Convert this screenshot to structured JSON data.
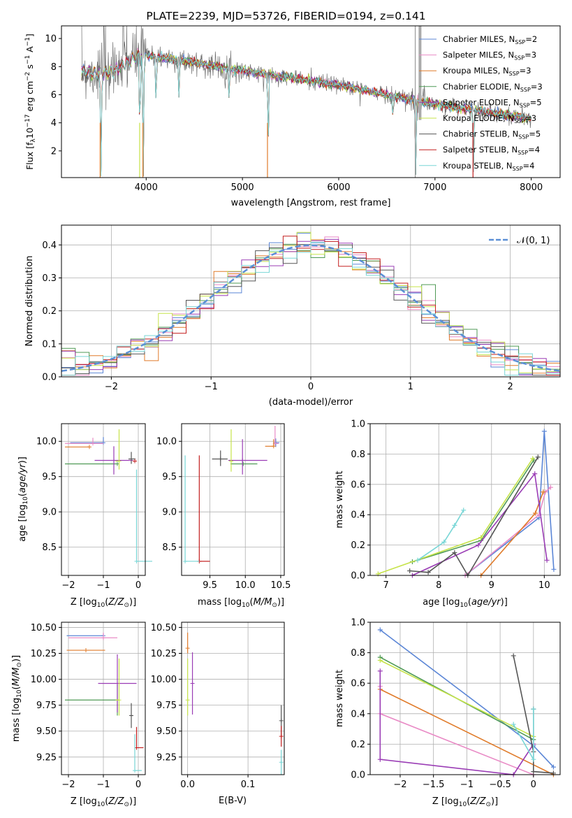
{
  "figure_title": "PLATE=2239, MJD=53726, FIBERID=0194, z=0.141",
  "colors": {
    "Chabrier MILES": "#5b86d6",
    "Salpeter MILES": "#e98bc6",
    "Kroupa MILES": "#e07b2a",
    "Chabrier ELODIE": "#4f9a55",
    "Salpeter ELODIE": "#9a3cb5",
    "Kroupa ELODIE": "#c6e34a",
    "Chabrier STELIB": "#555555",
    "Salpeter STELIB": "#c41f1f",
    "Kroupa STELIB": "#78d6d6"
  },
  "chart_data": [
    {
      "id": "spectrum",
      "type": "line",
      "title": "PLATE=2239, MJD=53726, FIBERID=0194, z=0.141",
      "xlabel": "wavelength [Angstrom, rest frame]",
      "ylabel": "Flux [f_λ 10^-17 erg cm^-2 s^-1 A^-1]",
      "xlim": [
        3120,
        8300
      ],
      "ylim": [
        0.1,
        10.9
      ],
      "xticks": [
        4000,
        5000,
        6000,
        7000,
        8000
      ],
      "yticks": [
        2,
        4,
        6,
        8,
        10
      ],
      "legend_position": "top-right",
      "legend": [
        {
          "base": "Chabrier MILES, N",
          "sub": "SSP",
          "tail": "=2"
        },
        {
          "base": "Salpeter MILES, N",
          "sub": "SSP",
          "tail": "=3"
        },
        {
          "base": "Kroupa MILES, N",
          "sub": "SSP",
          "tail": "=3"
        },
        {
          "base": "Chabrier ELODIE, N",
          "sub": "SSP",
          "tail": "=3"
        },
        {
          "base": "Salpeter ELODIE, N",
          "sub": "SSP",
          "tail": "=5"
        },
        {
          "base": "Kroupa ELODIE, N",
          "sub": "SSP",
          "tail": "=3"
        },
        {
          "base": "Chabrier STELIB, N",
          "sub": "SSP",
          "tail": "=5"
        },
        {
          "base": "Salpeter STELIB, N",
          "sub": "SSP",
          "tail": "=4"
        },
        {
          "base": "Kroupa STELIB, N",
          "sub": "SSP",
          "tail": "=4"
        }
      ],
      "continuum": [
        [
          3330,
          7.7
        ],
        [
          3500,
          7.5
        ],
        [
          3650,
          7.6
        ],
        [
          3800,
          8.3
        ],
        [
          3950,
          8.9
        ],
        [
          4100,
          8.7
        ],
        [
          4500,
          8.3
        ],
        [
          5000,
          7.7
        ],
        [
          5500,
          7.2
        ],
        [
          6000,
          6.7
        ],
        [
          6500,
          6.0
        ],
        [
          7000,
          5.3
        ],
        [
          7500,
          4.8
        ],
        [
          7800,
          4.5
        ],
        [
          8000,
          4.3
        ]
      ],
      "absorption_lines": [
        [
          3530,
          0.2
        ],
        [
          3934,
          2.6
        ],
        [
          3970,
          0.2
        ],
        [
          4102,
          5.2
        ],
        [
          4340,
          5.8
        ],
        [
          4861,
          5.6
        ],
        [
          5268,
          2.2
        ],
        [
          6563,
          4.2
        ],
        [
          6800,
          0.3
        ],
        [
          7400,
          0.5
        ]
      ]
    },
    {
      "id": "residuals",
      "type": "line",
      "xlabel": "(data-model)/error",
      "ylabel": "Normed distribution",
      "xlim": [
        -2.5,
        2.5
      ],
      "ylim": [
        0,
        0.46
      ],
      "xticks": [
        -2,
        -1,
        0,
        1,
        2
      ],
      "yticks": [
        0.0,
        0.1,
        0.2,
        0.3,
        0.4
      ],
      "legend_position": "top-right",
      "legend": [
        "𝒩(0, 1)"
      ],
      "gaussian": {
        "mean": 0,
        "sigma": 1,
        "n_bins": 36,
        "bin_width": 0.1389
      }
    },
    {
      "id": "age-vs-Z",
      "type": "scatter",
      "xlabel": "Z [log10(Z/Z⊙)]",
      "ylabel": "age  [log10(age/yr)]",
      "xlim": [
        -2.2,
        0.2
      ],
      "ylim": [
        8.1,
        10.25
      ],
      "xticks": [
        -2,
        -1,
        0
      ],
      "yticks": [
        8.5,
        9.0,
        9.5,
        10.0
      ],
      "points": [
        {
          "m": "Chabrier MILES",
          "x": -1.0,
          "xerr": [
            0.95,
            0
          ],
          "y": 9.98,
          "yerr": [
            0,
            0.08
          ]
        },
        {
          "m": "Salpeter MILES",
          "x": -1.3,
          "xerr": [
            0.8,
            0.3
          ],
          "y": 9.97,
          "yerr": [
            0,
            0.08
          ]
        },
        {
          "m": "Kroupa MILES",
          "x": -1.4,
          "xerr": [
            0.7,
            0
          ],
          "y": 9.92,
          "yerr": [
            0,
            0
          ]
        },
        {
          "m": "Chabrier ELODIE",
          "x": -0.6,
          "xerr": [
            1.5,
            0
          ],
          "y": 9.68,
          "yerr": [
            0,
            0
          ]
        },
        {
          "m": "Salpeter ELODIE",
          "x": -0.7,
          "xerr": [
            0.55,
            0.55
          ],
          "y": 9.73,
          "yerr": [
            0.2,
            0.2
          ]
        },
        {
          "m": "Kroupa ELODIE",
          "x": -0.55,
          "xerr": [
            0.1,
            0
          ],
          "y": 9.72,
          "yerr": [
            0.12,
            0.45
          ]
        },
        {
          "m": "Chabrier STELIB",
          "x": -0.2,
          "xerr": [
            0.08,
            0.12
          ],
          "y": 9.75,
          "yerr": [
            0.07,
            0.1
          ]
        },
        {
          "m": "Salpeter STELIB",
          "x": -0.1,
          "xerr": [
            0.05,
            0.05
          ],
          "y": 9.72,
          "yerr": [
            0,
            0
          ]
        },
        {
          "m": "Kroupa STELIB",
          "x": -0.05,
          "xerr": [
            0,
            0.45
          ],
          "y": 8.3,
          "yerr": [
            0,
            1.3
          ]
        }
      ]
    },
    {
      "id": "age-vs-mass",
      "type": "scatter",
      "xlabel": "mass [log10(M/M⊙)]",
      "xlim": [
        9.1,
        10.55
      ],
      "ylim": [
        8.1,
        10.25
      ],
      "xticks": [
        9.5,
        10.0,
        10.5
      ],
      "yticks": [
        8.5,
        9.0,
        9.5,
        10.0
      ],
      "points": [
        {
          "m": "Chabrier MILES",
          "x": 10.43,
          "xerr": [
            0,
            0.05
          ],
          "y": 9.98,
          "yerr": [
            0.06,
            0.06
          ]
        },
        {
          "m": "Salpeter MILES",
          "x": 10.42,
          "xerr": [
            0,
            0.05
          ],
          "y": 9.97,
          "yerr": [
            0,
            0.25
          ]
        },
        {
          "m": "Kroupa MILES",
          "x": 10.4,
          "xerr": [
            0.12,
            0
          ],
          "y": 9.93,
          "yerr": [
            0,
            0.1
          ]
        },
        {
          "m": "Chabrier ELODIE",
          "x": 9.97,
          "xerr": [
            0.18,
            0.2
          ],
          "y": 9.68,
          "yerr": [
            0,
            0
          ]
        },
        {
          "m": "Salpeter ELODIE",
          "x": 9.96,
          "xerr": [
            0.2,
            0.35
          ],
          "y": 9.73,
          "yerr": [
            0.2,
            0.3
          ]
        },
        {
          "m": "Kroupa ELODIE",
          "x": 9.8,
          "xerr": [
            0,
            0
          ],
          "y": 9.72,
          "yerr": [
            0.15,
            0.45
          ]
        },
        {
          "m": "Chabrier STELIB",
          "x": 9.65,
          "xerr": [
            0.12,
            0.1
          ],
          "y": 9.75,
          "yerr": [
            0.1,
            0.12
          ]
        },
        {
          "m": "Salpeter STELIB",
          "x": 9.35,
          "xerr": [
            0,
            0.15
          ],
          "y": 8.3,
          "yerr": [
            0,
            1.5
          ]
        },
        {
          "m": "Kroupa STELIB",
          "x": 9.15,
          "xerr": [
            0,
            0.2
          ],
          "y": 8.3,
          "yerr": [
            0,
            1.5
          ]
        }
      ]
    },
    {
      "id": "weight-vs-age",
      "type": "line",
      "xlabel": "age  [log10(age/yr)]",
      "ylabel": "mass weight",
      "xlim": [
        6.7,
        10.3
      ],
      "ylim": [
        0,
        1.0
      ],
      "xticks": [
        7,
        8,
        9,
        10
      ],
      "yticks": [
        0.0,
        0.2,
        0.4,
        0.6,
        0.8,
        1.0
      ],
      "series": [
        {
          "m": "Chabrier MILES",
          "x": [
            8.5,
            9.9,
            10.0,
            10.18
          ],
          "y": [
            0.0,
            0.38,
            0.95,
            0.04
          ]
        },
        {
          "m": "Salpeter MILES",
          "x": [
            8.5,
            9.9,
            10.02,
            10.12
          ],
          "y": [
            0.0,
            0.4,
            0.55,
            0.58
          ]
        },
        {
          "m": "Kroupa MILES",
          "x": [
            8.8,
            9.83,
            9.98
          ],
          "y": [
            0.0,
            0.41,
            0.55
          ]
        },
        {
          "m": "Chabrier ELODIE",
          "x": [
            7.5,
            8.8,
            9.8
          ],
          "y": [
            0.09,
            0.23,
            0.76
          ]
        },
        {
          "m": "Salpeter ELODIE",
          "x": [
            7.5,
            8.75,
            9.82,
            10.05
          ],
          "y": [
            0.0,
            0.2,
            0.67,
            0.1
          ]
        },
        {
          "m": "Kroupa ELODIE",
          "x": [
            6.85,
            8.8,
            9.78
          ],
          "y": [
            0.01,
            0.25,
            0.77
          ]
        },
        {
          "m": "Chabrier STELIB",
          "x": [
            7.45,
            7.8,
            8.3,
            8.55,
            9.88
          ],
          "y": [
            0.03,
            0.02,
            0.15,
            0.0,
            0.78
          ]
        },
        {
          "m": "Salpeter STELIB",
          "x": [],
          "y": []
        },
        {
          "m": "Kroupa STELIB",
          "x": [
            7.6,
            8.1,
            8.3,
            8.47
          ],
          "y": [
            0.1,
            0.22,
            0.33,
            0.43
          ]
        }
      ]
    },
    {
      "id": "mass-vs-Z",
      "type": "scatter",
      "xlabel": "Z [log10(Z/Z⊙)]",
      "ylabel": "mass [log10(M/M⊙)]",
      "xlim": [
        -2.2,
        0.2
      ],
      "ylim": [
        9.08,
        10.55
      ],
      "xticks": [
        -2,
        -1,
        0
      ],
      "yticks": [
        9.25,
        9.5,
        9.75,
        10.0,
        10.25,
        10.5
      ],
      "points": [
        {
          "m": "Chabrier MILES",
          "x": -1.0,
          "xerr": [
            1.05,
            0
          ],
          "y": 10.42,
          "yerr": [
            0,
            0.02
          ]
        },
        {
          "m": "Salpeter MILES",
          "x": -1.0,
          "xerr": [
            1.0,
            0.4
          ],
          "y": 10.4,
          "yerr": [
            0.02,
            0.05
          ]
        },
        {
          "m": "Kroupa MILES",
          "x": -1.5,
          "xerr": [
            0.55,
            0.55
          ],
          "y": 10.28,
          "yerr": [
            0,
            0
          ]
        },
        {
          "m": "Chabrier ELODIE",
          "x": -0.6,
          "xerr": [
            1.5,
            0
          ],
          "y": 9.8,
          "yerr": [
            0.15,
            0.15
          ]
        },
        {
          "m": "Salpeter ELODIE",
          "x": -0.6,
          "xerr": [
            0.55,
            0.55
          ],
          "y": 9.96,
          "yerr": [
            0.28,
            0.28
          ]
        },
        {
          "m": "Kroupa ELODIE",
          "x": -0.55,
          "xerr": [
            0.1,
            0
          ],
          "y": 9.8,
          "yerr": [
            0.15,
            0.4
          ]
        },
        {
          "m": "Chabrier STELIB",
          "x": -0.2,
          "xerr": [
            0.05,
            0.05
          ],
          "y": 9.65,
          "yerr": [
            0.12,
            0.12
          ]
        },
        {
          "m": "Salpeter STELIB",
          "x": -0.05,
          "xerr": [
            0,
            0.2
          ],
          "y": 9.34,
          "yerr": [
            0,
            0.2
          ]
        },
        {
          "m": "Kroupa STELIB",
          "x": -0.1,
          "xerr": [
            0,
            0.2
          ],
          "y": 9.12,
          "yerr": [
            0,
            0.35
          ]
        }
      ]
    },
    {
      "id": "mass-vs-EBV",
      "type": "scatter",
      "xlabel": "E(B-V)",
      "xlim": [
        -0.01,
        0.16
      ],
      "ylim": [
        9.08,
        10.55
      ],
      "xticks": [
        0.0,
        0.1
      ],
      "yticks": [
        9.25,
        9.5,
        9.75,
        10.0,
        10.25,
        10.5
      ],
      "points": [
        {
          "m": "Kroupa MILES",
          "x": 0.0,
          "xerr": [
            0,
            0
          ],
          "y": 10.3,
          "yerr": [
            0.05,
            0.15
          ]
        },
        {
          "m": "Kroupa ELODIE",
          "x": 0.0,
          "xerr": [
            0,
            0
          ],
          "y": 9.8,
          "yerr": [
            0.15,
            0.4
          ]
        },
        {
          "m": "Salpeter ELODIE",
          "x": 0.008,
          "xerr": [
            0,
            0
          ],
          "y": 9.96,
          "yerr": [
            0.3,
            0.3
          ]
        },
        {
          "m": "Chabrier STELIB",
          "x": 0.155,
          "xerr": [
            0,
            0
          ],
          "y": 9.6,
          "yerr": [
            0.15,
            0.15
          ]
        },
        {
          "m": "Salpeter STELIB",
          "x": 0.155,
          "xerr": [
            0,
            0
          ],
          "y": 9.45,
          "yerr": [
            0.1,
            0.1
          ]
        },
        {
          "m": "Kroupa STELIB",
          "x": 0.155,
          "xerr": [
            0,
            0
          ],
          "y": 9.2,
          "yerr": [
            0.12,
            0.12
          ]
        }
      ]
    },
    {
      "id": "weight-vs-Z",
      "type": "line",
      "xlabel": "Z [log10(Z/Z⊙)]",
      "ylabel": "mass weight",
      "xlim": [
        -2.45,
        0.4
      ],
      "ylim": [
        0,
        1.0
      ],
      "xticks": [
        -2.0,
        -1.5,
        -1.0,
        -0.5,
        0.0
      ],
      "yticks": [
        0.0,
        0.2,
        0.4,
        0.6,
        0.8,
        1.0
      ],
      "series": [
        {
          "m": "Chabrier MILES",
          "x": [
            -2.3,
            0.0,
            0.3
          ],
          "y": [
            0.95,
            0.19,
            0.05
          ]
        },
        {
          "m": "Salpeter MILES",
          "x": [
            -2.3,
            -2.3,
            0.0
          ],
          "y": [
            0.58,
            0.4,
            0.0
          ]
        },
        {
          "m": "Kroupa MILES",
          "x": [
            -2.3,
            0.3
          ],
          "y": [
            0.56,
            0.0
          ]
        },
        {
          "m": "Chabrier ELODIE",
          "x": [
            -2.3,
            0.0
          ],
          "y": [
            0.77,
            0.23
          ]
        },
        {
          "m": "Salpeter ELODIE",
          "x": [
            -2.3,
            -2.3,
            -0.3,
            0.0
          ],
          "y": [
            0.68,
            0.1,
            0.0,
            0.2
          ]
        },
        {
          "m": "Kroupa ELODIE",
          "x": [
            -2.3,
            0.0
          ],
          "y": [
            0.75,
            0.25
          ]
        },
        {
          "m": "Chabrier STELIB",
          "x": [
            -0.3,
            0.0,
            0.0,
            0.0,
            0.3
          ],
          "y": [
            0.78,
            0.15,
            0.43,
            0.02,
            0.01
          ]
        },
        {
          "m": "Salpeter STELIB",
          "x": [],
          "y": []
        },
        {
          "m": "Kroupa STELIB",
          "x": [
            -0.3,
            0.0,
            0.0
          ],
          "y": [
            0.33,
            0.1,
            0.43
          ]
        }
      ]
    }
  ]
}
